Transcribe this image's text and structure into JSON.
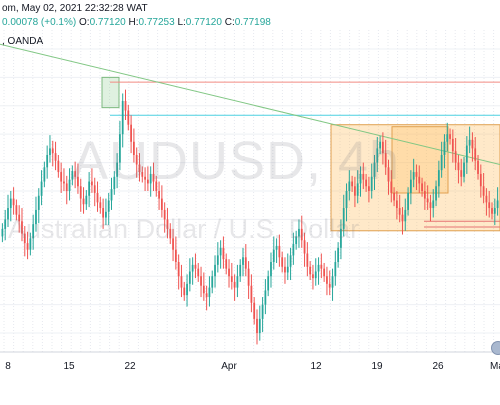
{
  "header": {
    "line1": "om, May 02, 2021 22:32:28 WAT",
    "change": "0.00078 (+0.1%)",
    "open_label": "O:",
    "open": "0.77120",
    "high_label": "H:",
    "high": "0.77253",
    "low_label": "L:",
    "low": "0.77120",
    "close_label": "C:",
    "close": "0.77198",
    "line2": ", OANDA"
  },
  "watermark": {
    "symbol": "AUDUSD, 4h",
    "description": "Australian Dollar / U.S. Dollar"
  },
  "colors": {
    "up": "#26a69a",
    "down": "#ef5350",
    "header_value": "#26a69a",
    "resistance_line": "#f28b82",
    "cyan_line": "#4dd0e1",
    "trendline": "#81c784",
    "range_fill": "rgba(255,183,77,0.30)",
    "range_border": "#e0a050"
  },
  "chart_data": {
    "type": "candlestick",
    "title": "",
    "xlabel": "",
    "ylabel": "",
    "x_tick_labels": [
      "8",
      "15",
      "22",
      "Apr",
      "12",
      "19",
      "26",
      "Ma"
    ],
    "y_axis_visible": false,
    "grid": true,
    "annotations": [
      {
        "kind": "horizontal_line",
        "color": "resistance",
        "price": 0.7845
      },
      {
        "kind": "horizontal_line",
        "color": "cyan",
        "price": 0.781
      },
      {
        "kind": "trendline",
        "from_price": 0.7885,
        "to_price": 0.7758
      },
      {
        "kind": "range_box",
        "top_price": 0.78,
        "bottom_price": 0.7688
      },
      {
        "kind": "small_box",
        "label": ""
      }
    ],
    "ohlc_close_series": [
      0.769,
      0.77,
      0.7712,
      0.7722,
      0.7715,
      0.7705,
      0.7698,
      0.7685,
      0.7675,
      0.7668,
      0.768,
      0.7695,
      0.771,
      0.7725,
      0.774,
      0.7755,
      0.7768,
      0.7775,
      0.777,
      0.7762,
      0.775,
      0.774,
      0.7738,
      0.773,
      0.7742,
      0.7751,
      0.7745,
      0.7735,
      0.7722,
      0.7716,
      0.7725,
      0.774,
      0.7736,
      0.7728,
      0.7718,
      0.7712,
      0.7702,
      0.7708,
      0.772,
      0.7732,
      0.7745,
      0.776,
      0.779,
      0.7825,
      0.7815,
      0.78,
      0.7782,
      0.7768,
      0.7758,
      0.775,
      0.7745,
      0.7742,
      0.7738,
      0.7748,
      0.774,
      0.773,
      0.7722,
      0.771,
      0.77,
      0.769,
      0.768,
      0.7668,
      0.7655,
      0.764,
      0.7628,
      0.762,
      0.7632,
      0.7645,
      0.7652,
      0.7648,
      0.764,
      0.763,
      0.7622,
      0.7618,
      0.7628,
      0.764,
      0.7652,
      0.7662,
      0.767,
      0.7658,
      0.7648,
      0.764,
      0.7634,
      0.7628,
      0.764,
      0.7652,
      0.766,
      0.7648,
      0.763,
      0.7612,
      0.7595,
      0.758,
      0.7595,
      0.761,
      0.7625,
      0.764,
      0.7655,
      0.7668,
      0.7672,
      0.766,
      0.765,
      0.7644,
      0.765,
      0.7662,
      0.7674,
      0.7682,
      0.769,
      0.7678,
      0.7664,
      0.765,
      0.7642,
      0.7638,
      0.7645,
      0.7652,
      0.7648,
      0.764,
      0.7632,
      0.7628,
      0.764,
      0.7655,
      0.767,
      0.769,
      0.7712,
      0.773,
      0.774,
      0.7735,
      0.7725,
      0.7738,
      0.7748,
      0.7742,
      0.7735,
      0.773,
      0.7745,
      0.776,
      0.7775,
      0.7782,
      0.777,
      0.7755,
      0.774,
      0.7728,
      0.772,
      0.7712,
      0.7705,
      0.7698,
      0.771,
      0.7728,
      0.7742,
      0.775,
      0.7745,
      0.7738,
      0.773,
      0.7722,
      0.7718,
      0.7712,
      0.772,
      0.7735,
      0.7752,
      0.7768,
      0.7782,
      0.779,
      0.7785,
      0.7772,
      0.776,
      0.7752,
      0.7745,
      0.776,
      0.7778,
      0.7784,
      0.7775,
      0.7762,
      0.7748,
      0.7735,
      0.7725,
      0.7718,
      0.7712,
      0.7706,
      0.7712,
      0.772
    ]
  }
}
